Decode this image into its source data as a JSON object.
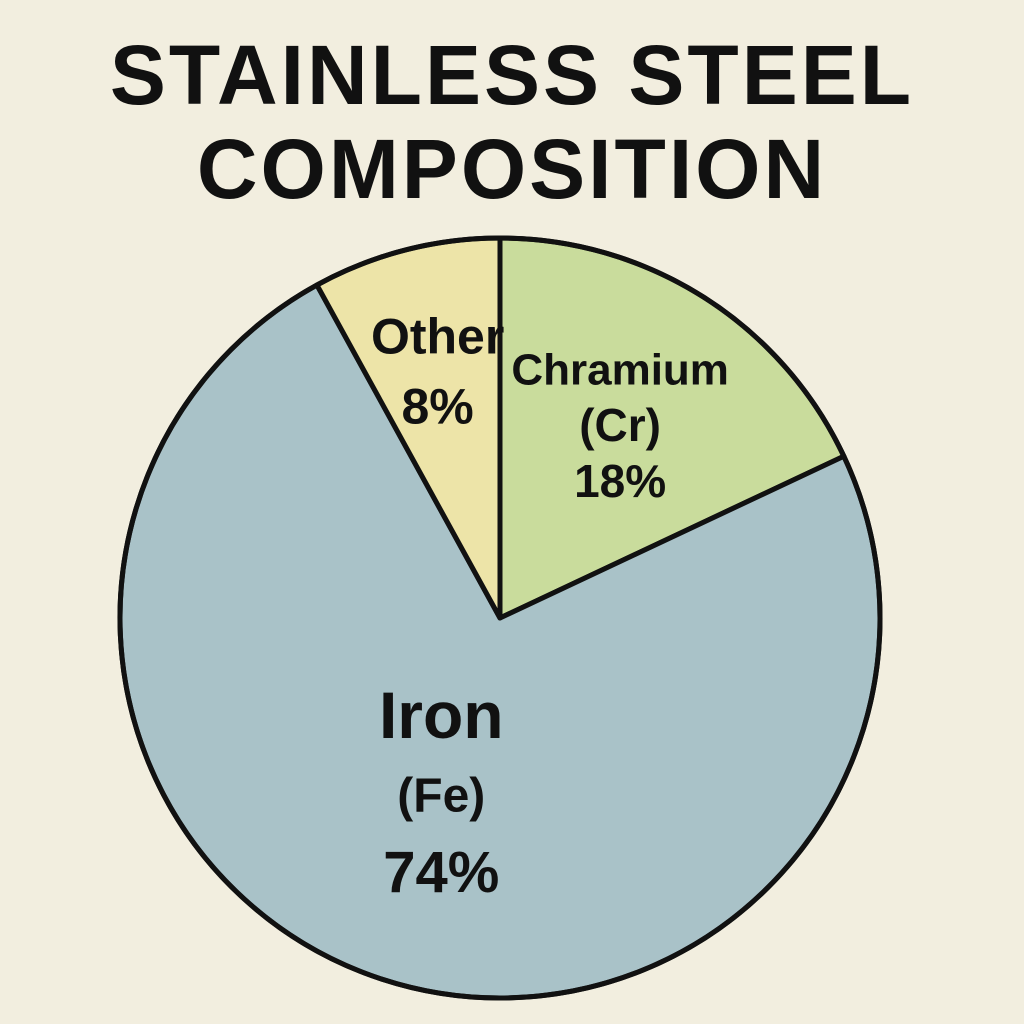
{
  "chart_data": {
    "type": "pie",
    "title_lines": [
      "STAINLESS STEEL",
      "COMPOSITION"
    ],
    "xlabel": "",
    "ylabel": "",
    "legend": "none",
    "start": "top",
    "direction": "clockwise",
    "slices": [
      {
        "lines": [
          "Chramium",
          "(Cr)",
          "18%"
        ],
        "value": 18,
        "color": "#C9DC9C"
      },
      {
        "lines": [
          "Iron",
          "(Fe)",
          "74%"
        ],
        "value": 74,
        "color": "#A9C2C8"
      },
      {
        "lines": [
          "Other",
          "8%"
        ],
        "value": 8,
        "color": "#EDE4A8"
      }
    ]
  }
}
